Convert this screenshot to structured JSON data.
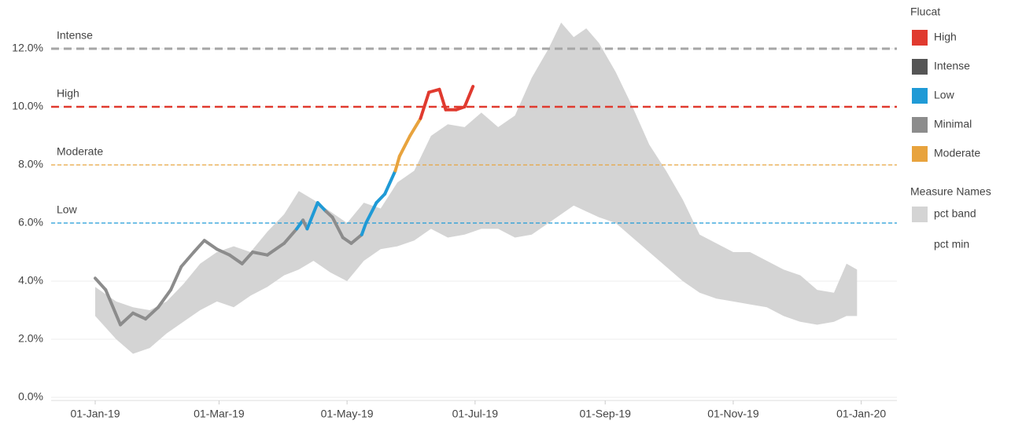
{
  "chart_data": {
    "type": "band-line",
    "xlim": [
      "2018-12-11",
      "2020-01-18"
    ],
    "xticks": [
      {
        "value": "2019-01-01",
        "label": "01-Jan-19"
      },
      {
        "value": "2019-03-01",
        "label": "01-Mar-19"
      },
      {
        "value": "2019-05-01",
        "label": "01-May-19"
      },
      {
        "value": "2019-07-01",
        "label": "01-Jul-19"
      },
      {
        "value": "2019-09-01",
        "label": "01-Sep-19"
      },
      {
        "value": "2019-11-01",
        "label": "01-Nov-19"
      },
      {
        "value": "2020-01-01",
        "label": "01-Jan-20"
      }
    ],
    "ylim": [
      0,
      13
    ],
    "yticks": [
      {
        "value": 0,
        "label": "0.0%"
      },
      {
        "value": 2,
        "label": "2.0%"
      },
      {
        "value": 4,
        "label": "4.0%"
      },
      {
        "value": 6,
        "label": "6.0%"
      },
      {
        "value": 8,
        "label": "8.0%"
      },
      {
        "value": 10,
        "label": "10.0%"
      },
      {
        "value": 12,
        "label": "12.0%"
      }
    ],
    "grid": true,
    "reference_lines": [
      {
        "label": "Intense",
        "value": 12,
        "color": "#a6a6a6",
        "width": 3
      },
      {
        "label": "High",
        "value": 10,
        "color": "#e03a2f",
        "width": 2.5
      },
      {
        "label": "Moderate",
        "value": 8,
        "color": "#e8a33d",
        "width": 1.2
      },
      {
        "label": "Low",
        "value": 6,
        "color": "#1f9ad6",
        "width": 1.2
      }
    ],
    "legend_title": "Flucat",
    "legend": [
      {
        "name": "High",
        "color": "#e03a2f"
      },
      {
        "name": "Intense",
        "color": "#555555"
      },
      {
        "name": "Low",
        "color": "#1f9ad6"
      },
      {
        "name": "Minimal",
        "color": "#8c8c8c"
      },
      {
        "name": "Moderate",
        "color": "#e8a33d"
      }
    ],
    "measure_legend_title": "Measure Names",
    "band": {
      "name": "pct band",
      "color": "#d4d4d4",
      "x": [
        "2019-01-01",
        "2019-01-11",
        "2019-01-19",
        "2019-01-27",
        "2019-02-04",
        "2019-02-12",
        "2019-02-20",
        "2019-02-28",
        "2019-03-08",
        "2019-03-16",
        "2019-03-24",
        "2019-04-01",
        "2019-04-08",
        "2019-04-15",
        "2019-04-23",
        "2019-05-01",
        "2019-05-09",
        "2019-05-17",
        "2019-05-25",
        "2019-06-02",
        "2019-06-10",
        "2019-06-18",
        "2019-06-26",
        "2019-07-04",
        "2019-07-12",
        "2019-07-20",
        "2019-07-28",
        "2019-08-05",
        "2019-08-11",
        "2019-08-17",
        "2019-08-23",
        "2019-08-29",
        "2019-09-06",
        "2019-09-14",
        "2019-09-22",
        "2019-09-30",
        "2019-10-08",
        "2019-10-16",
        "2019-10-24",
        "2019-11-01",
        "2019-11-09",
        "2019-11-17",
        "2019-11-25",
        "2019-12-03",
        "2019-12-11",
        "2019-12-19",
        "2019-12-25",
        "2019-12-30"
      ],
      "low": [
        2.8,
        2.0,
        1.5,
        1.7,
        2.2,
        2.6,
        3.0,
        3.3,
        3.1,
        3.5,
        3.8,
        4.2,
        4.4,
        4.7,
        4.3,
        4.0,
        4.7,
        5.1,
        5.2,
        5.4,
        5.8,
        5.5,
        5.6,
        5.8,
        5.8,
        5.5,
        5.6,
        6.0,
        6.3,
        6.6,
        6.4,
        6.2,
        6.0,
        5.5,
        5.0,
        4.5,
        4.0,
        3.6,
        3.4,
        3.3,
        3.2,
        3.1,
        2.8,
        2.6,
        2.5,
        2.6,
        2.8,
        2.8
      ],
      "high": [
        3.8,
        3.3,
        3.1,
        3.0,
        3.3,
        3.9,
        4.6,
        5.0,
        5.2,
        5.0,
        5.7,
        6.3,
        7.1,
        6.8,
        6.4,
        6.0,
        6.7,
        6.5,
        7.4,
        7.8,
        9.0,
        9.4,
        9.3,
        9.8,
        9.3,
        9.7,
        11.0,
        12.0,
        12.9,
        12.4,
        12.7,
        12.2,
        11.2,
        10.0,
        8.7,
        7.8,
        6.8,
        5.6,
        5.3,
        5.0,
        5.0,
        4.7,
        4.4,
        4.2,
        3.7,
        3.6,
        4.6,
        4.4
      ]
    },
    "line": {
      "name": "pct min",
      "x": [
        "2019-01-01",
        "2019-01-06",
        "2019-01-13",
        "2019-01-19",
        "2019-01-25",
        "2019-01-31",
        "2019-02-06",
        "2019-02-11",
        "2019-02-17",
        "2019-02-22",
        "2019-02-28",
        "2019-03-06",
        "2019-03-12",
        "2019-03-17",
        "2019-03-24",
        "2019-04-01",
        "2019-04-07",
        "2019-04-10",
        "2019-04-12",
        "2019-04-17",
        "2019-04-21",
        "2019-04-24",
        "2019-04-29",
        "2019-05-03",
        "2019-05-08",
        "2019-05-10",
        "2019-05-15",
        "2019-05-19",
        "2019-05-24",
        "2019-05-26",
        "2019-05-31",
        "2019-06-05",
        "2019-06-09",
        "2019-06-14",
        "2019-06-17",
        "2019-06-22",
        "2019-06-26",
        "2019-06-30"
      ],
      "values": [
        4.1,
        3.7,
        2.5,
        2.9,
        2.7,
        3.1,
        3.7,
        4.5,
        5.0,
        5.4,
        5.1,
        4.9,
        4.6,
        5.0,
        4.9,
        5.3,
        5.8,
        6.1,
        5.8,
        6.7,
        6.4,
        6.2,
        5.5,
        5.3,
        5.6,
        6.0,
        6.7,
        7.0,
        7.8,
        8.3,
        9.0,
        9.6,
        10.5,
        10.6,
        9.9,
        9.9,
        10.0,
        10.7
      ],
      "flucat": [
        "Minimal",
        "Minimal",
        "Minimal",
        "Minimal",
        "Minimal",
        "Minimal",
        "Minimal",
        "Minimal",
        "Minimal",
        "Minimal",
        "Minimal",
        "Minimal",
        "Minimal",
        "Minimal",
        "Minimal",
        "Minimal",
        "Minimal",
        "Low",
        "Minimal",
        "Low",
        "Low",
        "Minimal",
        "Minimal",
        "Minimal",
        "Minimal",
        "Low",
        "Low",
        "Low",
        "Low",
        "Moderate",
        "Moderate",
        "Moderate",
        "High",
        "High",
        "High",
        "High",
        "High",
        "High"
      ]
    }
  }
}
